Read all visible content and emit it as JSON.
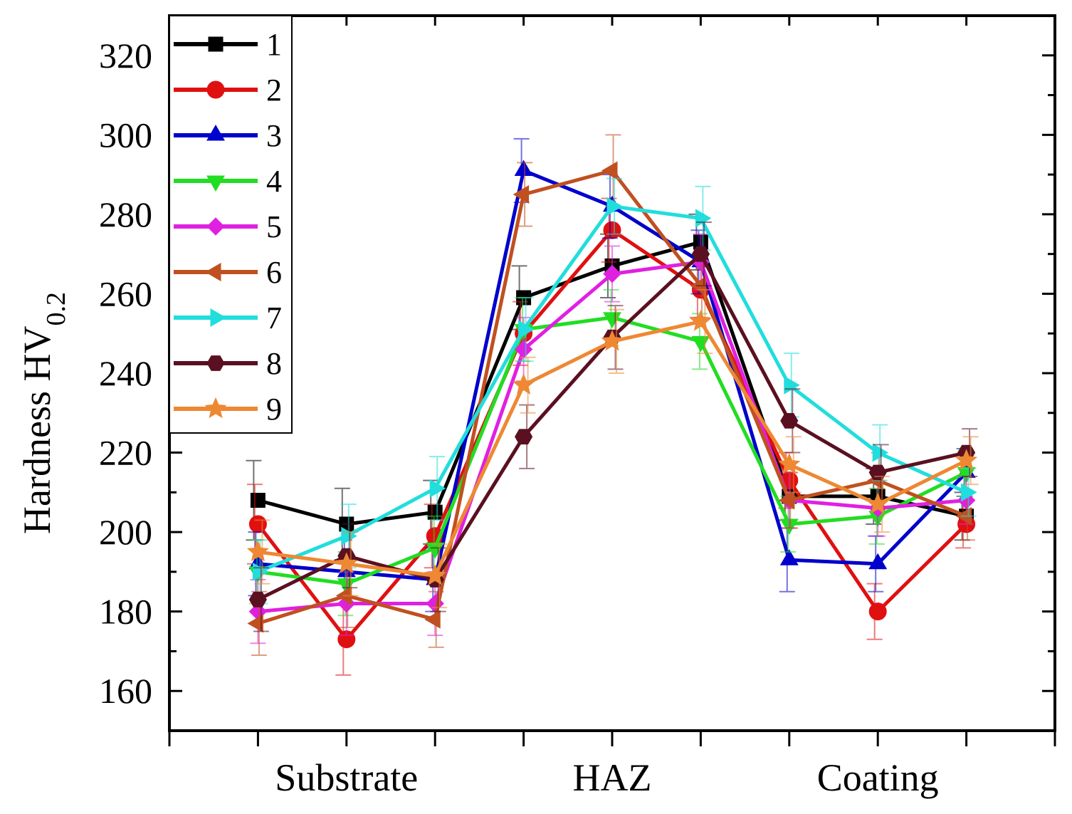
{
  "chart_data": {
    "type": "line",
    "title": "",
    "xlabel": "",
    "ylabel": "Hardness HV",
    "ylabel_subscript": "0.2",
    "ylim": [
      150,
      330
    ],
    "yticks": [
      160,
      180,
      200,
      220,
      240,
      260,
      280,
      300,
      320
    ],
    "xlim": [
      0,
      10
    ],
    "x": [
      1,
      2,
      3,
      4,
      5,
      6,
      7,
      8,
      9
    ],
    "category_labels": [
      {
        "text": "Substrate",
        "x": 2
      },
      {
        "text": "HAZ",
        "x": 5
      },
      {
        "text": "Coating",
        "x": 8
      }
    ],
    "series": [
      {
        "name": "1",
        "color": "#000000",
        "marker": "square",
        "values": [
          208,
          202,
          205,
          259,
          267,
          273,
          209,
          209,
          204
        ],
        "errors": [
          10,
          9,
          8,
          8,
          8,
          7,
          6,
          7,
          6
        ]
      },
      {
        "name": "2",
        "color": "#e01010",
        "marker": "circle",
        "values": [
          202,
          173,
          199,
          250,
          276,
          261,
          213,
          180,
          202
        ],
        "errors": [
          10,
          9,
          8,
          8,
          8,
          7,
          7,
          7,
          6
        ]
      },
      {
        "name": "3",
        "color": "#0000cc",
        "marker": "triangle-up",
        "values": [
          192,
          190,
          188,
          291,
          282,
          268,
          193,
          192,
          215
        ],
        "errors": [
          8,
          8,
          8,
          8,
          8,
          8,
          8,
          7,
          6
        ]
      },
      {
        "name": "4",
        "color": "#22dd22",
        "marker": "triangle-down",
        "values": [
          190,
          187,
          196,
          251,
          254,
          248,
          202,
          204,
          215
        ],
        "errors": [
          8,
          8,
          8,
          8,
          7,
          7,
          7,
          7,
          6
        ]
      },
      {
        "name": "5",
        "color": "#e020e0",
        "marker": "diamond",
        "values": [
          180,
          182,
          182,
          246,
          265,
          268,
          208,
          206,
          208
        ],
        "errors": [
          8,
          8,
          8,
          8,
          7,
          7,
          7,
          7,
          6
        ]
      },
      {
        "name": "6",
        "color": "#c05020",
        "marker": "triangle-left",
        "values": [
          177,
          184,
          178,
          285,
          291,
          262,
          208,
          213,
          204
        ],
        "errors": [
          8,
          8,
          7,
          8,
          9,
          8,
          7,
          7,
          6
        ]
      },
      {
        "name": "7",
        "color": "#22dddd",
        "marker": "triangle-right",
        "values": [
          190,
          199,
          211,
          251,
          282,
          279,
          237,
          220,
          210
        ],
        "errors": [
          8,
          8,
          8,
          8,
          7,
          8,
          8,
          7,
          6
        ]
      },
      {
        "name": "8",
        "color": "#5a1020",
        "marker": "hexagon",
        "values": [
          183,
          194,
          188,
          224,
          249,
          270,
          228,
          215,
          220
        ],
        "errors": [
          8,
          8,
          8,
          8,
          8,
          8,
          8,
          7,
          6
        ]
      },
      {
        "name": "9",
        "color": "#ee8833",
        "marker": "star",
        "values": [
          195,
          192,
          189,
          237,
          248,
          253,
          217,
          207,
          218
        ],
        "errors": [
          8,
          8,
          8,
          7,
          8,
          8,
          7,
          7,
          6
        ]
      }
    ],
    "legend": "top-left",
    "grid": false
  }
}
